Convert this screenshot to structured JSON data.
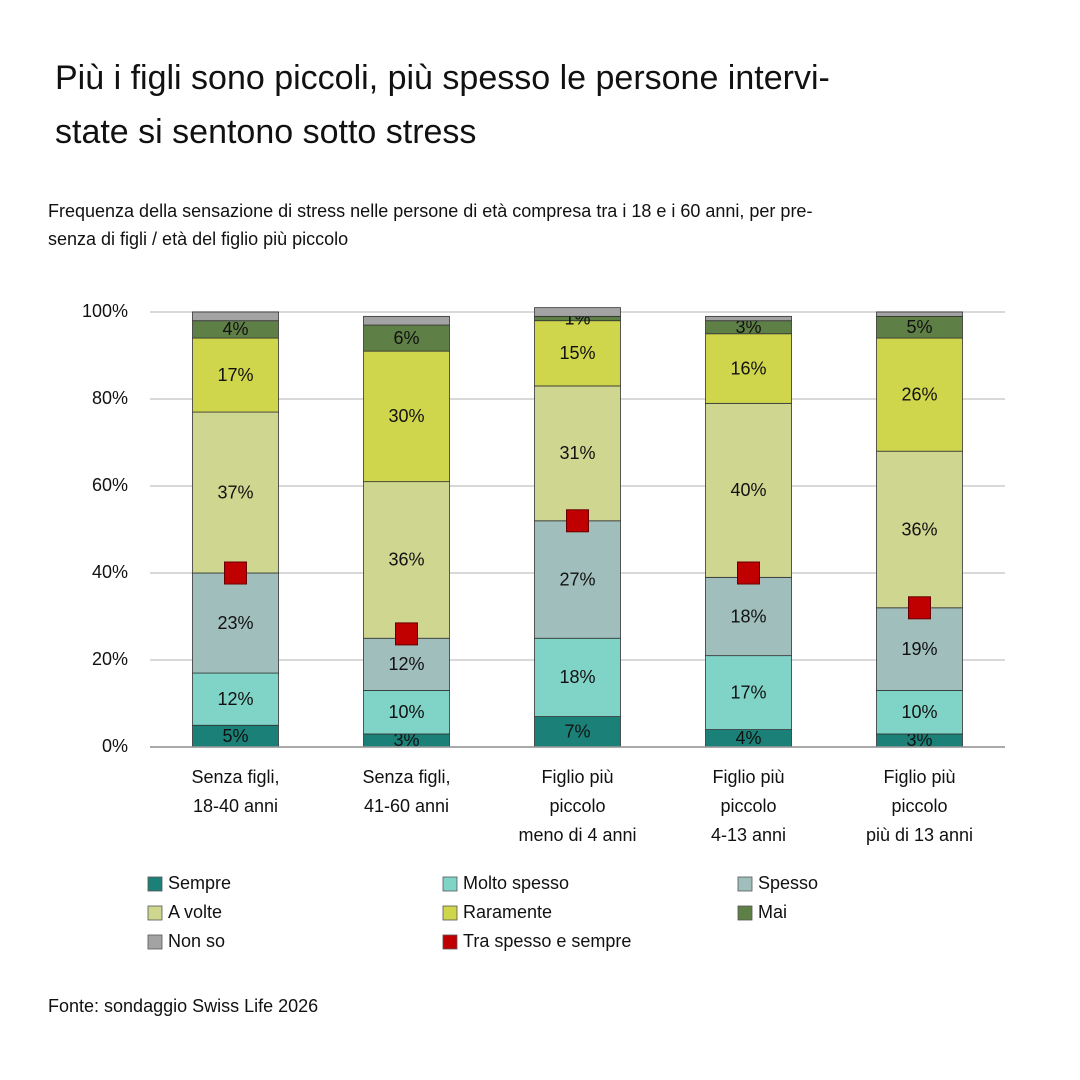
{
  "chart_data": {
    "type": "stacked-bar",
    "title": [
      "Più i figli sono piccoli, più spesso le persone intervi-",
      "state si sentono sotto stress"
    ],
    "subtitle": [
      "Frequenza della sensazione di stress nelle persone di età compresa tra i 18 e i 60 anni, per pre-",
      "senza di figli / età del figlio più piccolo"
    ],
    "source": "Fonte: sondaggio Swiss Life 2026",
    "categories": [
      [
        "Senza figli,",
        "18-40 anni"
      ],
      [
        "Senza figli,",
        "41-60 anni"
      ],
      [
        "Figlio più",
        "piccolo",
        "meno di 4 anni"
      ],
      [
        "Figlio più",
        "piccolo",
        "4-13 anni"
      ],
      [
        "Figlio più",
        "piccolo",
        "più di 13 anni"
      ]
    ],
    "series": [
      {
        "name": "Sempre",
        "color": "#1a8078",
        "values": [
          5,
          3,
          7,
          4,
          3
        ],
        "value_labels": [
          "5%",
          "3%",
          "7%",
          "4%",
          "3%"
        ]
      },
      {
        "name": "Molto spesso",
        "color": "#80d3c7",
        "values": [
          12,
          10,
          18,
          17,
          10
        ],
        "value_labels": [
          "12%",
          "10%",
          "18%",
          "17%",
          "10%"
        ]
      },
      {
        "name": "Spesso",
        "color": "#a0bfbc",
        "values": [
          23,
          12,
          27,
          18,
          19
        ],
        "value_labels": [
          "23%",
          "12%",
          "27%",
          "18%",
          "19%"
        ]
      },
      {
        "name": "A volte",
        "color": "#cfd690",
        "values": [
          37,
          36,
          31,
          40,
          36
        ],
        "value_labels": [
          "37%",
          "36%",
          "31%",
          "40%",
          "36%"
        ]
      },
      {
        "name": "Raramente",
        "color": "#cfd64b",
        "values": [
          17,
          30,
          15,
          16,
          26
        ],
        "value_labels": [
          "17%",
          "30%",
          "15%",
          "16%",
          "26%"
        ]
      },
      {
        "name": "Mai",
        "color": "#5e7f45",
        "values": [
          4,
          6,
          1,
          3,
          5
        ],
        "value_labels": [
          "4%",
          "6%",
          "1%",
          "3%",
          "5%"
        ]
      },
      {
        "name": "Non so",
        "color": "#a3a3a3",
        "values": [
          2,
          2,
          2,
          1,
          1
        ]
      },
      {
        "name": "Tra spesso e sempre",
        "color": "#c00000",
        "kind": "marker",
        "values": [
          40,
          26,
          52,
          40,
          32
        ]
      }
    ],
    "ylim": [
      0,
      100
    ],
    "yticks": [
      {
        "value": 0,
        "label": "0%"
      },
      {
        "value": 20,
        "label": "20%"
      },
      {
        "value": 40,
        "label": "40%"
      },
      {
        "value": 60,
        "label": "60%"
      },
      {
        "value": 80,
        "label": "80%"
      },
      {
        "value": 100,
        "label": "100%"
      }
    ],
    "grid": true
  }
}
